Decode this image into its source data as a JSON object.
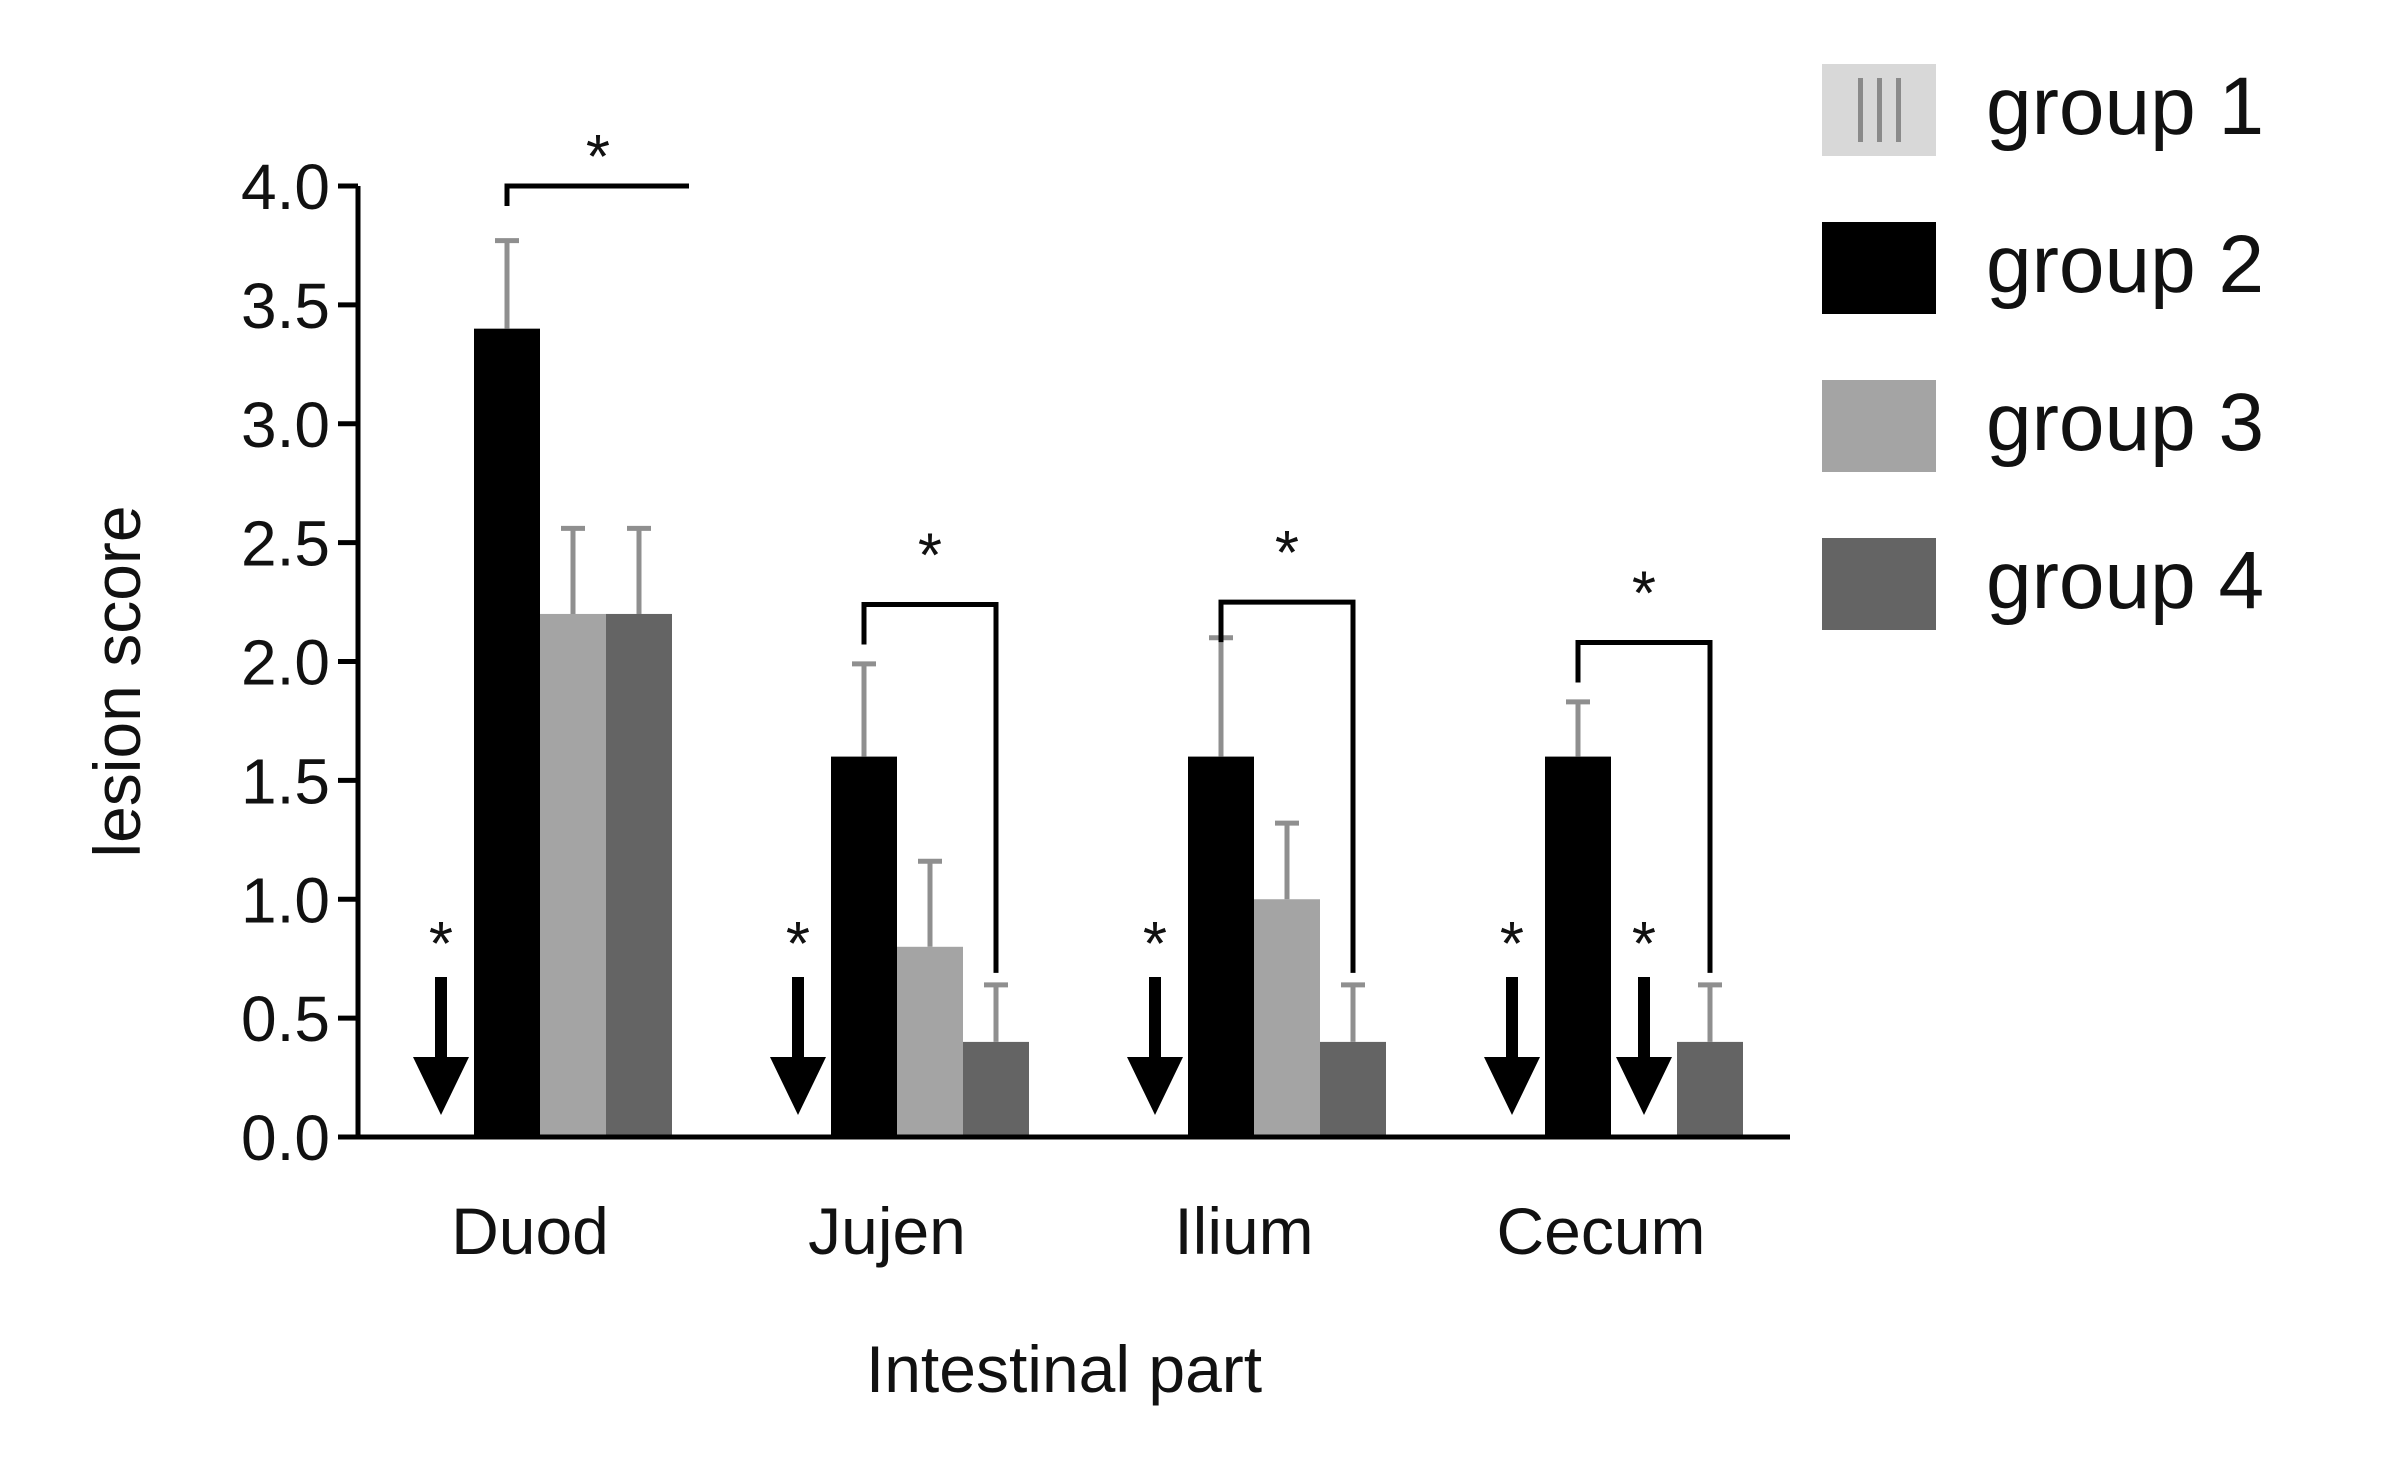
{
  "chart_data": {
    "type": "bar",
    "title": "",
    "xlabel": "Intestinal part",
    "ylabel": "lesion score",
    "ylim": [
      0,
      4
    ],
    "yticks": [
      "0.0",
      "0.5",
      "1.0",
      "1.5",
      "2.0",
      "2.5",
      "3.0",
      "3.5",
      "4.0"
    ],
    "categories": [
      "Duod",
      "Jujen",
      "Ilium",
      "Cecum"
    ],
    "legend_position": "right",
    "grid": false,
    "series": [
      {
        "name": "group 1",
        "color": "#d8d8d8",
        "values": [
          0,
          0,
          0,
          0
        ],
        "errors": [
          0,
          0,
          0,
          0
        ]
      },
      {
        "name": "group 2",
        "color": "#000000",
        "values": [
          3.4,
          1.6,
          1.6,
          1.6
        ],
        "errors": [
          0.37,
          0.39,
          0.5,
          0.23
        ]
      },
      {
        "name": "group 3",
        "color": "#a4a4a4",
        "values": [
          2.2,
          0.8,
          1.0,
          0
        ],
        "errors": [
          0.36,
          0.36,
          0.32,
          0
        ]
      },
      {
        "name": "group 4",
        "color": "#646464",
        "values": [
          2.2,
          0.4,
          0.4,
          0.4
        ],
        "errors": [
          0.36,
          0.24,
          0.24,
          0.24
        ]
      }
    ],
    "annotations": {
      "star_label": "*",
      "brackets": [
        {
          "category": 0,
          "from_series": 1,
          "to_series": 3,
          "label": "*"
        },
        {
          "category": 1,
          "from_series": 1,
          "to_series": 3,
          "label": "*"
        },
        {
          "category": 2,
          "from_series": 1,
          "to_series": 3,
          "label": "*"
        },
        {
          "category": 3,
          "from_series": 1,
          "to_series": 3,
          "label": "*"
        }
      ],
      "arrows": [
        {
          "category": 0,
          "series": 0,
          "label": "*"
        },
        {
          "category": 1,
          "series": 0,
          "label": "*"
        },
        {
          "category": 2,
          "series": 0,
          "label": "*"
        },
        {
          "category": 3,
          "series": 0,
          "label": "*"
        },
        {
          "category": 3,
          "series": 2,
          "label": "*"
        }
      ]
    }
  }
}
